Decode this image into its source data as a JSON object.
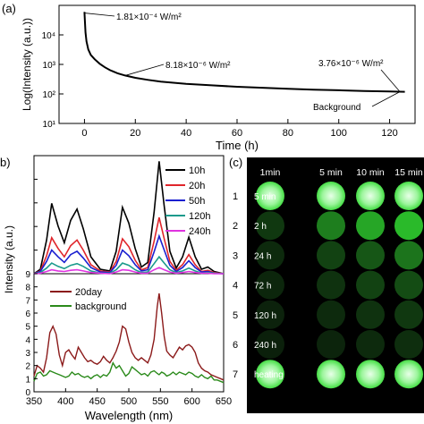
{
  "panel_labels": {
    "a": "(a)",
    "b": "b)",
    "c": "(c)"
  },
  "colors": {
    "decay": "#000000",
    "s10h": "#000000",
    "s20h": "#e0252b",
    "s50h": "#1a1fd0",
    "s120h": "#1a9a8c",
    "s240h": "#e033e0",
    "s20day": "#8b1a1a",
    "background": "#2a8a1a",
    "well_dark": "#0a1a0a",
    "glow": "#44dd44",
    "panel_bg": "#000000"
  },
  "chart_data": [
    {
      "type": "line",
      "panel": "a",
      "xlabel": "Time (h)",
      "ylabel": "Log(Intensity (a.u.))",
      "xlim": [
        -10,
        130
      ],
      "ylim_log10": [
        1,
        5
      ],
      "x_ticks": [
        "0",
        "20",
        "40",
        "60",
        "80",
        "100",
        "120"
      ],
      "y_ticks": [
        "10¹",
        "10²",
        "10³",
        "10⁴"
      ],
      "grid": false,
      "series": [
        {
          "x": [
            0,
            0.15,
            0.4,
            0.8,
            1.5,
            2.5,
            4,
            6,
            8,
            10,
            13,
            16,
            20,
            25,
            30,
            40,
            50,
            60,
            70,
            80,
            90,
            100,
            110,
            120,
            126
          ],
          "y": [
            60000,
            30000,
            12000,
            6000,
            3200,
            2100,
            1500,
            1050,
            800,
            640,
            500,
            420,
            350,
            300,
            260,
            220,
            195,
            175,
            162,
            150,
            140,
            133,
            126,
            121,
            118
          ]
        }
      ],
      "annotations": [
        {
          "text": "1.81×10⁻⁴ W/m²",
          "x": 0,
          "y": 55000
        },
        {
          "text": "8.18×10⁻⁶ W/m²",
          "x": 16,
          "y": 420
        },
        {
          "text": "3.76×10⁻⁶ W/m²",
          "x": 124,
          "y": 120
        },
        {
          "text": "Background",
          "x": 124,
          "y": 118
        }
      ]
    },
    {
      "type": "line",
      "panel": "b-top",
      "ylabel": "Intensity (a.u.)",
      "xlim": [
        350,
        650
      ],
      "grid": false,
      "legend": "top-right",
      "series": [
        {
          "name": "10h",
          "x": [
            350,
            360,
            370,
            378,
            388,
            398,
            408,
            418,
            428,
            440,
            455,
            470,
            480,
            490,
            500,
            510,
            520,
            530,
            540,
            548,
            556,
            565,
            575,
            585,
            595,
            605,
            615,
            625,
            635,
            650
          ],
          "y": [
            0,
            8,
            60,
            125,
            85,
            55,
            95,
            115,
            80,
            30,
            8,
            5,
            40,
            118,
            90,
            45,
            12,
            20,
            110,
            200,
            120,
            40,
            10,
            30,
            65,
            30,
            8,
            12,
            4,
            0
          ]
        },
        {
          "name": "20h",
          "x": [
            350,
            360,
            370,
            378,
            388,
            398,
            408,
            418,
            428,
            440,
            455,
            470,
            480,
            490,
            500,
            510,
            520,
            530,
            540,
            548,
            556,
            565,
            575,
            585,
            595,
            605,
            615,
            625,
            635,
            650
          ],
          "y": [
            0,
            5,
            32,
            64,
            45,
            30,
            50,
            60,
            42,
            16,
            5,
            3,
            22,
            62,
            48,
            24,
            7,
            11,
            58,
            100,
            62,
            22,
            6,
            16,
            34,
            16,
            4,
            6,
            2,
            0
          ]
        },
        {
          "name": "50h",
          "x": [
            350,
            360,
            370,
            378,
            388,
            398,
            408,
            418,
            428,
            440,
            455,
            470,
            480,
            490,
            500,
            510,
            520,
            530,
            540,
            548,
            556,
            565,
            575,
            585,
            595,
            605,
            615,
            625,
            635,
            650
          ],
          "y": [
            0,
            4,
            22,
            42,
            30,
            20,
            34,
            40,
            28,
            11,
            3,
            2,
            15,
            42,
            32,
            16,
            5,
            7,
            39,
            67,
            42,
            15,
            4,
            11,
            23,
            11,
            3,
            4,
            1,
            0
          ]
        },
        {
          "name": "120h",
          "x": [
            350,
            360,
            370,
            378,
            388,
            398,
            408,
            418,
            428,
            440,
            455,
            470,
            480,
            490,
            500,
            510,
            520,
            530,
            540,
            548,
            556,
            565,
            575,
            585,
            595,
            605,
            615,
            625,
            635,
            650
          ],
          "y": [
            0,
            2,
            10,
            19,
            13,
            9,
            15,
            18,
            13,
            5,
            1,
            1,
            7,
            19,
            15,
            7,
            2,
            3,
            18,
            30,
            19,
            7,
            2,
            5,
            10,
            5,
            1,
            2,
            1,
            0
          ]
        },
        {
          "name": "240h",
          "x": [
            350,
            360,
            370,
            378,
            388,
            398,
            408,
            418,
            428,
            440,
            455,
            470,
            480,
            490,
            500,
            510,
            520,
            530,
            540,
            548,
            556,
            565,
            575,
            585,
            595,
            605,
            615,
            625,
            635,
            650
          ],
          "y": [
            0,
            1,
            4,
            7,
            5,
            4,
            6,
            7,
            5,
            2,
            1,
            0,
            3,
            7,
            6,
            3,
            1,
            1,
            7,
            11,
            7,
            3,
            1,
            2,
            4,
            2,
            1,
            1,
            0,
            0
          ]
        }
      ]
    },
    {
      "type": "line",
      "panel": "b-bottom",
      "xlabel": "Wavelength (nm)",
      "xlim": [
        350,
        650
      ],
      "ylim": [
        0,
        9
      ],
      "x_ticks": [
        "350",
        "400",
        "450",
        "500",
        "550",
        "600",
        "650"
      ],
      "y_ticks": [
        "0",
        "1",
        "2",
        "3",
        "4",
        "5",
        "6",
        "7",
        "8",
        "9"
      ],
      "grid": false,
      "legend": "top-left",
      "series": [
        {
          "name": "20day",
          "x": [
            350,
            355,
            360,
            365,
            370,
            375,
            380,
            385,
            390,
            395,
            400,
            405,
            410,
            415,
            420,
            425,
            430,
            435,
            440,
            445,
            450,
            455,
            460,
            465,
            470,
            475,
            480,
            485,
            490,
            495,
            500,
            505,
            510,
            515,
            520,
            525,
            530,
            535,
            540,
            545,
            548,
            552,
            556,
            560,
            565,
            570,
            575,
            580,
            585,
            590,
            595,
            600,
            605,
            610,
            615,
            620,
            625,
            630,
            635,
            640,
            645,
            650
          ],
          "y": [
            1.2,
            2.0,
            1.8,
            1.5,
            2.6,
            4.5,
            5.0,
            4.4,
            2.8,
            2.0,
            3.0,
            3.2,
            2.8,
            2.5,
            3.4,
            3.0,
            2.6,
            2.3,
            2.4,
            2.2,
            2.1,
            2.3,
            2.7,
            2.4,
            2.2,
            2.6,
            3.1,
            3.8,
            5.0,
            4.8,
            3.8,
            3.0,
            2.6,
            2.4,
            2.6,
            2.4,
            2.2,
            2.8,
            4.0,
            6.5,
            7.5,
            6.0,
            4.2,
            3.1,
            2.8,
            2.6,
            3.0,
            3.4,
            3.2,
            3.5,
            3.6,
            3.4,
            3.0,
            2.2,
            1.8,
            1.6,
            1.5,
            1.3,
            1.2,
            1.1,
            1.0,
            0.9
          ]
        },
        {
          "name": "background",
          "x": [
            350,
            355,
            360,
            365,
            370,
            375,
            380,
            385,
            390,
            395,
            400,
            405,
            410,
            415,
            420,
            425,
            430,
            435,
            440,
            445,
            450,
            455,
            460,
            465,
            470,
            475,
            480,
            485,
            490,
            495,
            500,
            505,
            510,
            515,
            520,
            525,
            530,
            535,
            540,
            545,
            548,
            552,
            556,
            560,
            565,
            570,
            575,
            580,
            585,
            590,
            595,
            600,
            605,
            610,
            615,
            620,
            625,
            630,
            635,
            640,
            645,
            650
          ],
          "y": [
            0.8,
            1.4,
            1.5,
            1.2,
            1.3,
            1.6,
            1.5,
            1.4,
            1.3,
            1.2,
            1.1,
            1.2,
            1.5,
            1.3,
            1.4,
            1.2,
            1.1,
            1.2,
            1.0,
            1.2,
            1.3,
            1.1,
            1.3,
            1.2,
            1.5,
            2.2,
            1.8,
            2.0,
            1.6,
            1.2,
            1.4,
            1.9,
            1.7,
            1.5,
            1.3,
            1.4,
            1.2,
            1.5,
            1.6,
            1.4,
            1.3,
            1.5,
            1.4,
            1.2,
            1.3,
            1.5,
            1.3,
            1.5,
            1.4,
            1.3,
            1.5,
            1.4,
            1.2,
            1.1,
            1.3,
            1.1,
            1.0,
            1.2,
            0.9,
            0.9,
            0.8,
            0.7
          ]
        }
      ]
    }
  ],
  "well_plate": {
    "columns": [
      "1min",
      "5 min",
      "10 min",
      "15 min"
    ],
    "rows": [
      {
        "number": "1",
        "label": "5 min",
        "brightness": [
          1.0,
          1.0,
          1.0,
          1.0
        ]
      },
      {
        "number": "2",
        "label": "2 h",
        "brightness": [
          0.15,
          0.5,
          0.7,
          0.8
        ]
      },
      {
        "number": "3",
        "label": "24 h",
        "brightness": [
          0.08,
          0.2,
          0.3,
          0.45
        ]
      },
      {
        "number": "4",
        "label": "72 h",
        "brightness": [
          0.06,
          0.12,
          0.2,
          0.25
        ]
      },
      {
        "number": "5",
        "label": "120 h",
        "brightness": [
          0.04,
          0.08,
          0.12,
          0.15
        ]
      },
      {
        "number": "6",
        "label": "240 h",
        "brightness": [
          0.03,
          0.05,
          0.08,
          0.1
        ]
      },
      {
        "number": "7",
        "label": "heating",
        "brightness": [
          1.0,
          1.0,
          1.0,
          1.0
        ]
      }
    ]
  }
}
